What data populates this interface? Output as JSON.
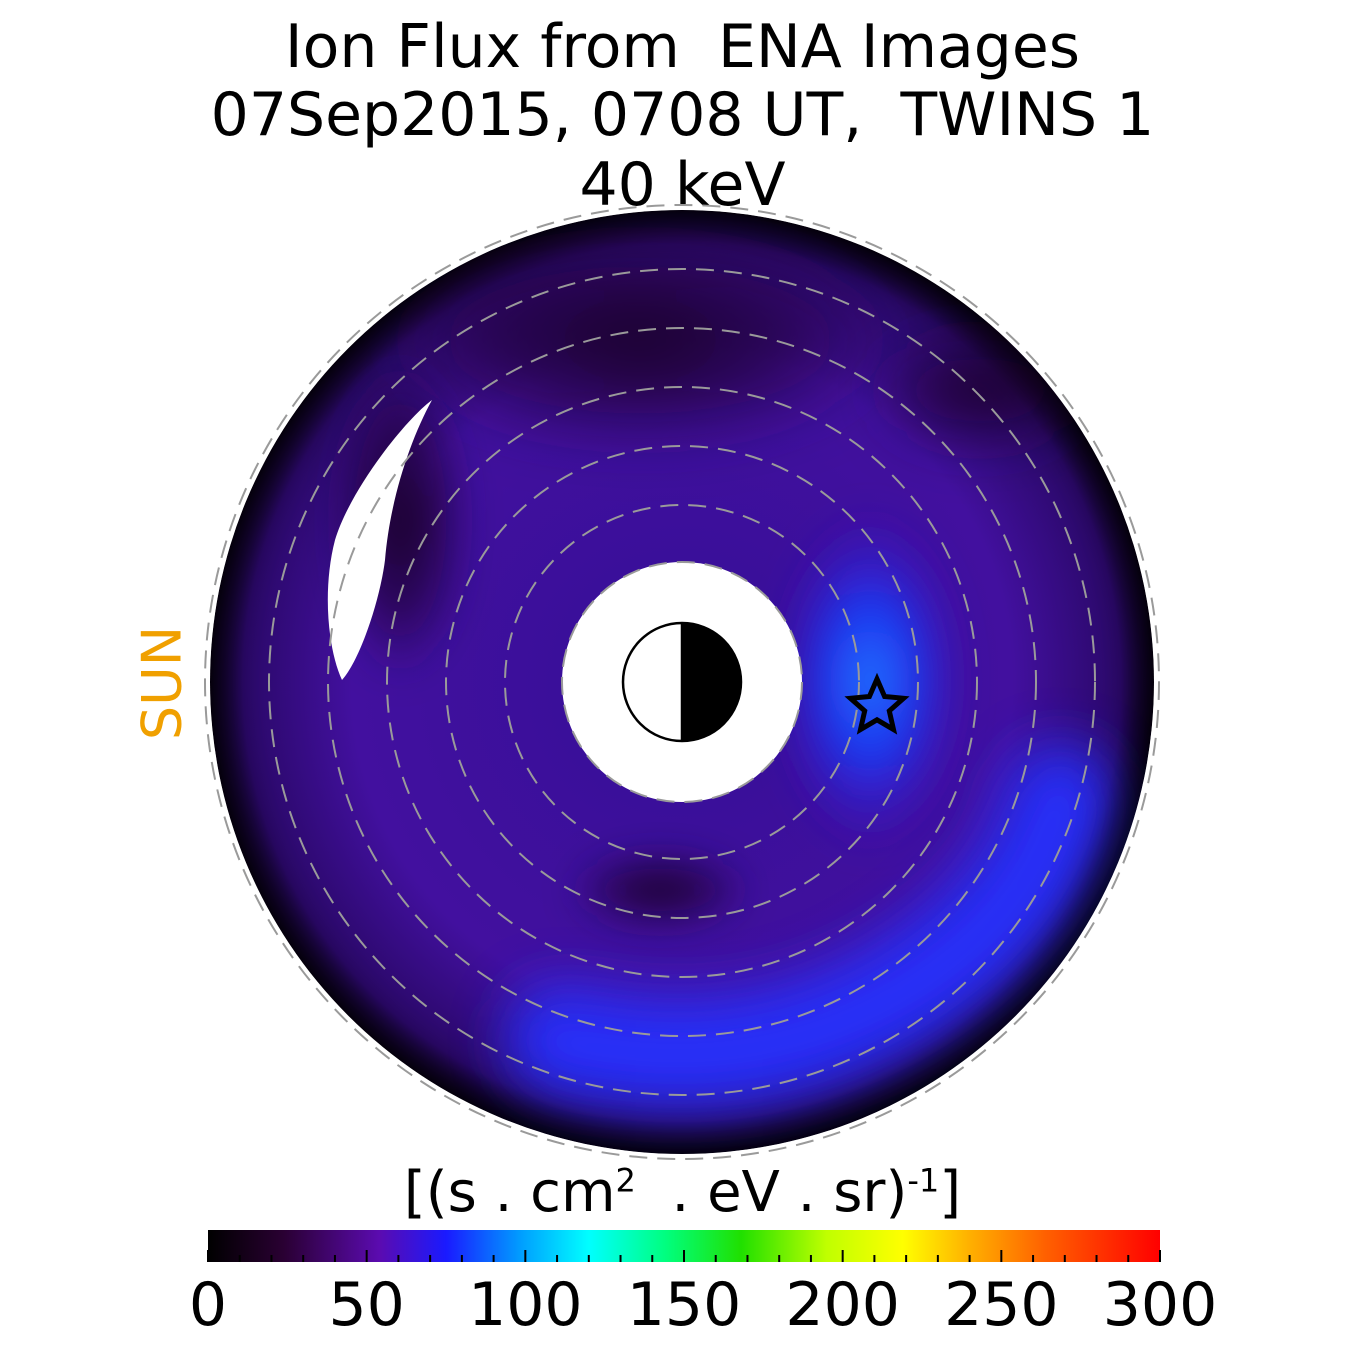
{
  "title": {
    "line1": "Ion Flux from  ENA Images",
    "line2": "07Sep2015, 0708 UT,  TWINS 1",
    "line3": "40 keV"
  },
  "sun_label": "SUN",
  "chart_data": {
    "type": "heatmap",
    "projection": "polar (equatorial plane, Sun to the left)",
    "colorbar": {
      "units_base": "[(s . cm",
      "units_sup1": "2",
      "units_mid": "  . eV . sr)",
      "units_sup2": "-1",
      "units_end": "]",
      "range": [
        0,
        300
      ],
      "ticks": [
        0,
        50,
        100,
        150,
        200,
        250,
        300
      ],
      "colormap": [
        "#000000",
        "#2a0033",
        "#5b0bb0",
        "#1a1aff",
        "#00a0ff",
        "#00ffff",
        "#00ff80",
        "#20e000",
        "#c0ff00",
        "#ffff00",
        "#ffb000",
        "#ff6000",
        "#ff0000"
      ]
    },
    "features": [
      {
        "name": "flux enhancement (dusk side)",
        "approx_flux": 90
      },
      {
        "name": "flux enhancement (post-midnight)",
        "approx_flux": 75
      },
      {
        "name": "background ring",
        "approx_flux": 30
      }
    ],
    "marker": {
      "type": "star"
    },
    "grid": "dashed concentric circles"
  }
}
